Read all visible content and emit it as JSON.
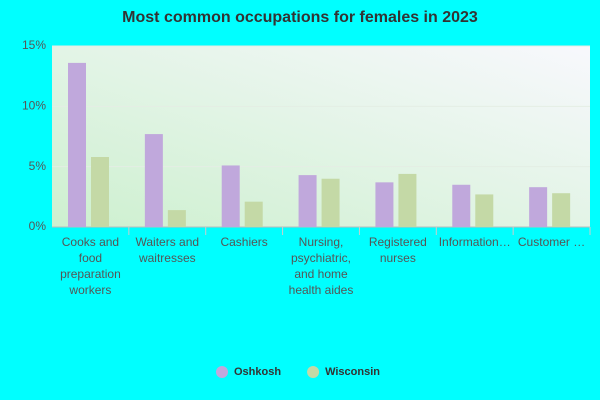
{
  "chart_data": {
    "type": "bar",
    "title": "Most common occupations for females in 2023",
    "categories": [
      "Cooks and food preparation workers",
      "Waiters and waitresses",
      "Cashiers",
      "Nursing, psychiatric, and home health aides",
      "Registered nurses",
      "Information…",
      "Customer …"
    ],
    "series": [
      {
        "name": "Oshkosh",
        "color": "#c0a8dc",
        "values": [
          13.6,
          7.7,
          5.1,
          4.3,
          3.7,
          3.5,
          3.3
        ]
      },
      {
        "name": "Wisconsin",
        "color": "#c4d9a6",
        "values": [
          5.8,
          1.4,
          2.1,
          4.0,
          4.4,
          2.7,
          2.8
        ]
      }
    ],
    "ylim": [
      0,
      15
    ],
    "yticks": [
      {
        "value": 0,
        "label": "0%"
      },
      {
        "value": 5,
        "label": "5%"
      },
      {
        "value": 10,
        "label": "10%"
      },
      {
        "value": 15,
        "label": "15%"
      }
    ],
    "grid": true
  }
}
